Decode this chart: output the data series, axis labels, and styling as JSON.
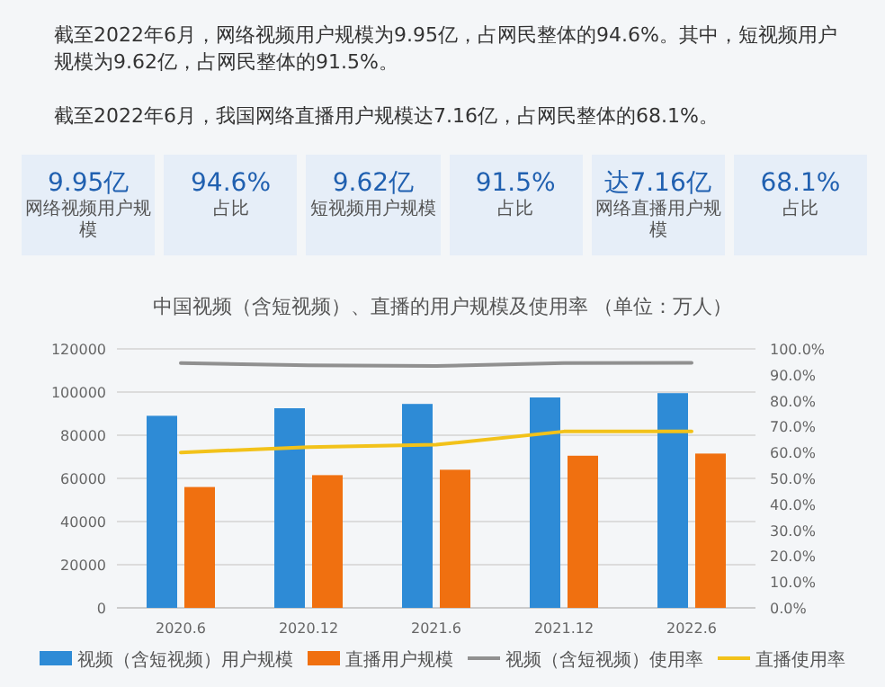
{
  "chart_data": [
    {
      "type": "other",
      "annotations": [
        "截至2022年6月，网络视频用户规模为9.95亿，占网民整体的94.6%。其中，短视频用户规模为9.62亿，占网民整体的91.5%。",
        "截至2022年6月，我国网络直播用户规模达7.16亿，占网民整体的68.1%。",
        "9.95亿",
        "网络视频用户规模",
        "94.6%",
        "占比",
        "9.62亿",
        "短视频用户规模",
        "91.5%",
        "占比",
        "达7.16亿",
        "网络直播用户规模",
        "68.1%",
        "占比"
      ]
    },
    {
      "type": "bar",
      "title": "中国视频（含短视频）、直播的用户规模及使用率 （单位：万人）",
      "categories": [
        "2020.6",
        "2020.12",
        "2021.6",
        "2021.12",
        "2022.6"
      ],
      "series": [
        {
          "name": "视频（含短视频）用户规模",
          "color": "#2e8bd6",
          "values": [
            89000,
            92500,
            94500,
            97500,
            99500
          ]
        },
        {
          "name": "直播用户规模",
          "color": "#f07010",
          "values": [
            56000,
            61500,
            64000,
            70500,
            71500
          ]
        },
        {
          "name": "视频（含短视频）使用率",
          "type": "line",
          "axis": "y2",
          "color": "#909090",
          "values": [
            94.5,
            93.7,
            93.4,
            94.5,
            94.6
          ]
        },
        {
          "name": "直播使用率",
          "type": "line",
          "axis": "y2",
          "color": "#f2c21a",
          "values": [
            60.0,
            62.1,
            63.0,
            68.1,
            68.1
          ]
        }
      ],
      "ylim": [
        0,
        120000
      ],
      "yticks": [
        0,
        20000,
        40000,
        60000,
        80000,
        100000,
        120000
      ],
      "y2lim": [
        0,
        100
      ],
      "y2ticks": [
        {
          "value": 0,
          "label": "0.0%"
        },
        {
          "value": 10,
          "label": "10.0%"
        },
        {
          "value": 20,
          "label": "20.0%"
        },
        {
          "value": 30,
          "label": "30.0%"
        },
        {
          "value": 40,
          "label": "40.0%"
        },
        {
          "value": 50,
          "label": "50.0%"
        },
        {
          "value": 60,
          "label": "60.0%"
        },
        {
          "value": 70,
          "label": "70.0%"
        },
        {
          "value": 80,
          "label": "80.0%"
        },
        {
          "value": 90,
          "label": "90.0%"
        },
        {
          "value": 100,
          "label": "100.0%"
        }
      ],
      "grid": "y",
      "legend": "bottom",
      "marker": "none",
      "line_style": "solid"
    }
  ]
}
